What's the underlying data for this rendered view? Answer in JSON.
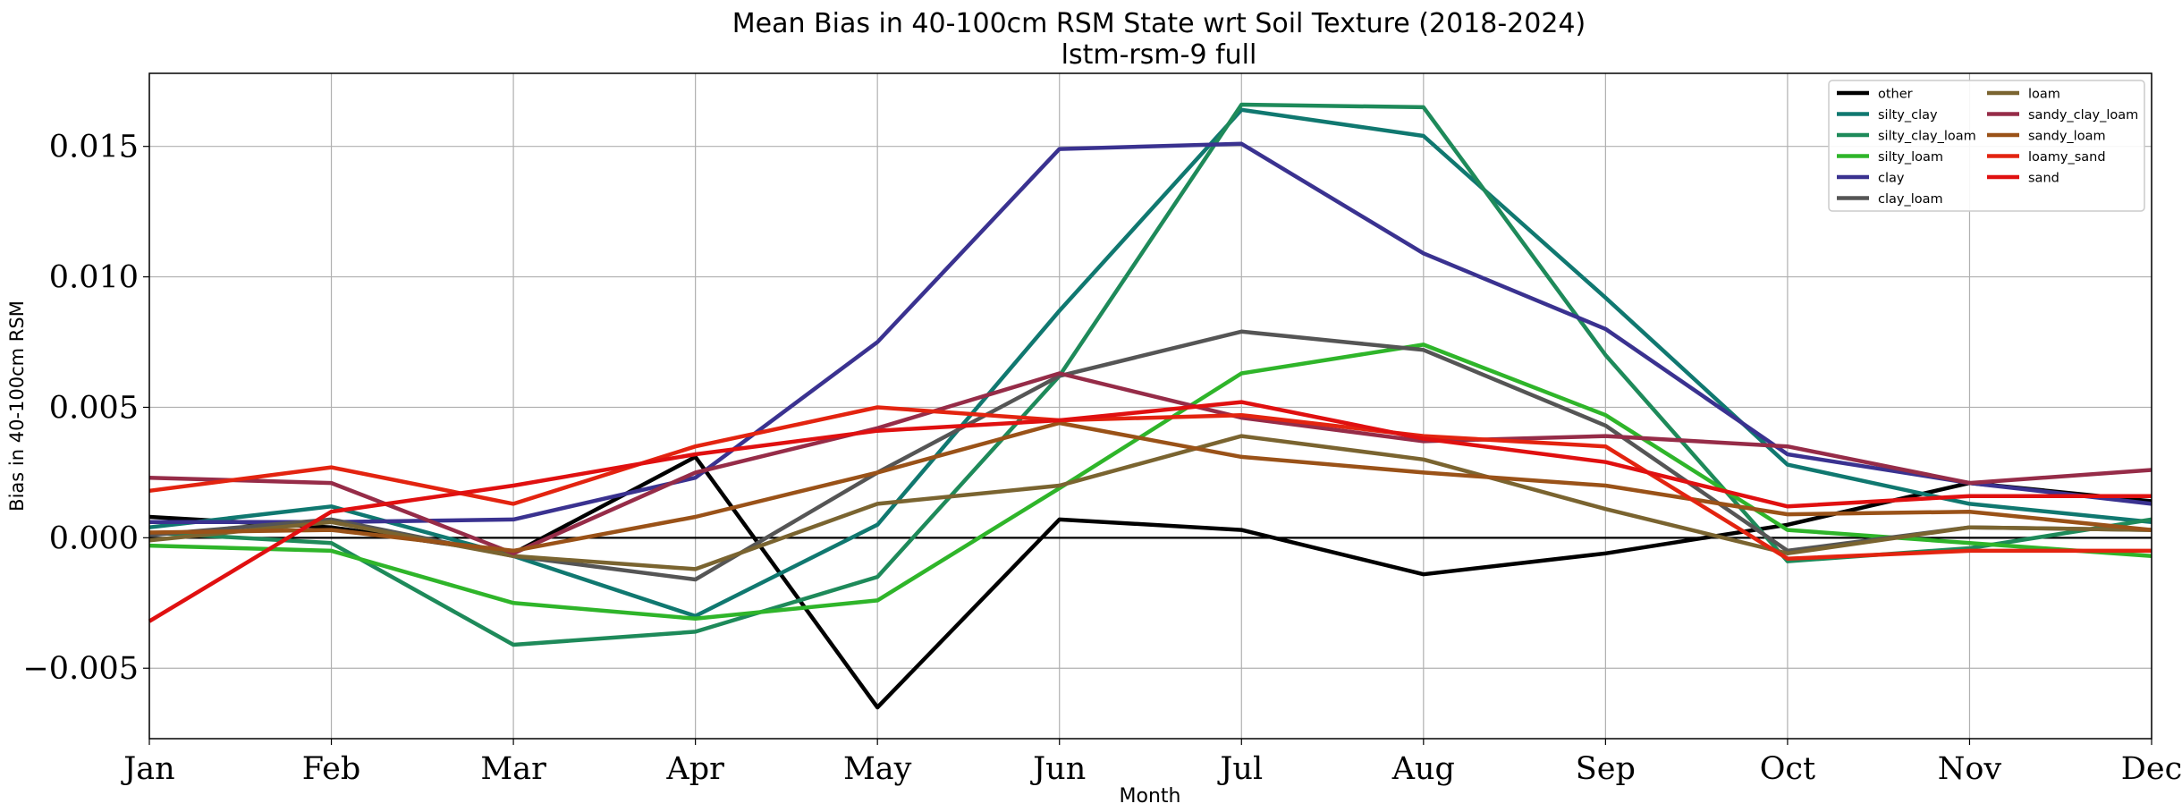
{
  "chart_data": {
    "type": "line",
    "title": "Mean Bias in 40-100cm RSM State wrt Soil Texture (2018-2024)",
    "subtitle": "lstm-rsm-9 full",
    "xlabel": "Month",
    "ylabel": "Bias in 40-100cm RSM",
    "categories": [
      "Jan",
      "Feb",
      "Mar",
      "Apr",
      "May",
      "Jun",
      "Jul",
      "Aug",
      "Sep",
      "Oct",
      "Nov",
      "Dec"
    ],
    "ylim": [
      -0.0077,
      0.0178
    ],
    "yticks": [
      -0.005,
      0.0,
      0.005,
      0.01,
      0.015
    ],
    "ytick_labels": [
      "−0.005",
      "0.000",
      "0.005",
      "0.010",
      "0.015"
    ],
    "grid": true,
    "reference_line": 0.0,
    "legend_position": "top-right",
    "series": [
      {
        "name": "other",
        "color": "#000000",
        "values": [
          0.0008,
          0.0004,
          -0.0006,
          0.0031,
          -0.0065,
          0.0007,
          0.0003,
          -0.0014,
          -0.0006,
          0.0005,
          0.0021,
          0.0014
        ]
      },
      {
        "name": "silty_clay",
        "color": "#107870",
        "values": [
          0.0004,
          0.0012,
          -0.0007,
          -0.003,
          0.0005,
          0.0087,
          0.0164,
          0.0154,
          0.0092,
          0.0028,
          0.0013,
          0.0006
        ]
      },
      {
        "name": "silty_clay_loam",
        "color": "#1e8a5a",
        "values": [
          0.0002,
          -0.0002,
          -0.0041,
          -0.0036,
          -0.0015,
          0.0062,
          0.0166,
          0.0165,
          0.007,
          -0.0009,
          -0.0004,
          0.0007
        ]
      },
      {
        "name": "silty_loam",
        "color": "#2fb52a",
        "values": [
          -0.0003,
          -0.0005,
          -0.0025,
          -0.0031,
          -0.0024,
          0.0019,
          0.0063,
          0.0074,
          0.0047,
          0.0003,
          -0.0002,
          -0.0007
        ]
      },
      {
        "name": "clay",
        "color": "#3a3290",
        "values": [
          0.0006,
          0.0006,
          0.0007,
          0.0023,
          0.0075,
          0.0149,
          0.0151,
          0.0109,
          0.008,
          0.0032,
          0.0021,
          0.0013
        ]
      },
      {
        "name": "clay_loam",
        "color": "#555555",
        "values": [
          0.0001,
          0.0007,
          -0.0007,
          -0.0016,
          0.0025,
          0.0062,
          0.0079,
          0.0072,
          0.0043,
          -0.0005,
          0.0004,
          0.0003
        ]
      },
      {
        "name": "loam",
        "color": "#7a6430",
        "values": [
          -0.0001,
          0.0006,
          -0.0007,
          -0.0012,
          0.0013,
          0.002,
          0.0039,
          0.003,
          0.0011,
          -0.0006,
          0.0004,
          0.0003
        ]
      },
      {
        "name": "sandy_clay_loam",
        "color": "#962c48",
        "values": [
          0.0023,
          0.0021,
          -0.0006,
          0.0025,
          0.0042,
          0.0063,
          0.0046,
          0.0037,
          0.0039,
          0.0035,
          0.0021,
          0.0026
        ]
      },
      {
        "name": "sandy_loam",
        "color": "#9a5218",
        "values": [
          0.0002,
          0.0003,
          -0.0005,
          0.0008,
          0.0025,
          0.0044,
          0.0031,
          0.0025,
          0.002,
          0.0009,
          0.001,
          0.0003
        ]
      },
      {
        "name": "loamy_sand",
        "color": "#e32410",
        "values": [
          0.0018,
          0.0027,
          0.0013,
          0.0035,
          0.005,
          0.0045,
          0.0047,
          0.0039,
          0.0035,
          -0.0008,
          -0.0005,
          -0.0005
        ]
      },
      {
        "name": "sand",
        "color": "#e01010",
        "values": [
          -0.0032,
          0.001,
          0.002,
          0.0032,
          0.0041,
          0.0045,
          0.0052,
          0.0038,
          0.0029,
          0.0012,
          0.0016,
          0.0016
        ]
      }
    ]
  }
}
